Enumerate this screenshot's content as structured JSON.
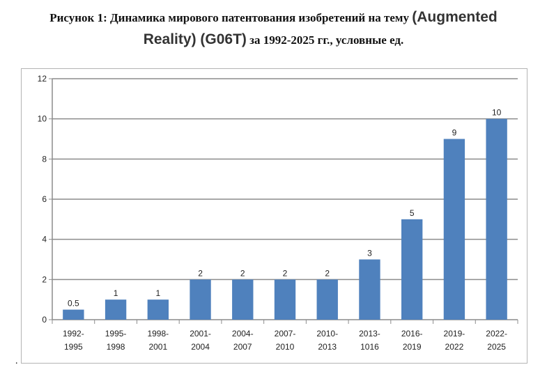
{
  "title": {
    "part1": "Рисунок 1: Динамика мирового патентования изобретений на тему ",
    "part2": "(Augmented",
    "part3": "Reality) (G06T)",
    "part4": " за 1992-2025 гг., условные ед."
  },
  "footnote_mark": ".",
  "colors": {
    "bar": "#4f81bd",
    "grid": "#8c8c8c",
    "axis": "#8c8c8c"
  },
  "chart_data": {
    "type": "bar",
    "title": "",
    "xlabel": "",
    "ylabel": "",
    "ylim": [
      0,
      12
    ],
    "yticks": [
      0,
      2,
      4,
      6,
      8,
      10,
      12
    ],
    "grid": true,
    "legend": "none",
    "categories": [
      [
        "1992-",
        "1995"
      ],
      [
        "1995-",
        "1998"
      ],
      [
        "1998-",
        "2001"
      ],
      [
        "2001-",
        "2004"
      ],
      [
        "2004-",
        "2007"
      ],
      [
        "2007-",
        "2010"
      ],
      [
        "2010-",
        "2013"
      ],
      [
        "2013-",
        "1016"
      ],
      [
        "2016-",
        "2019"
      ],
      [
        "2019-",
        "2022"
      ],
      [
        "2022-",
        "2025"
      ]
    ],
    "values": [
      0.5,
      1,
      1,
      2,
      2,
      2,
      2,
      3,
      5,
      9,
      10
    ],
    "data_labels": [
      "0.5",
      "1",
      "1",
      "2",
      "2",
      "2",
      "2",
      "3",
      "5",
      "9",
      "10"
    ]
  }
}
